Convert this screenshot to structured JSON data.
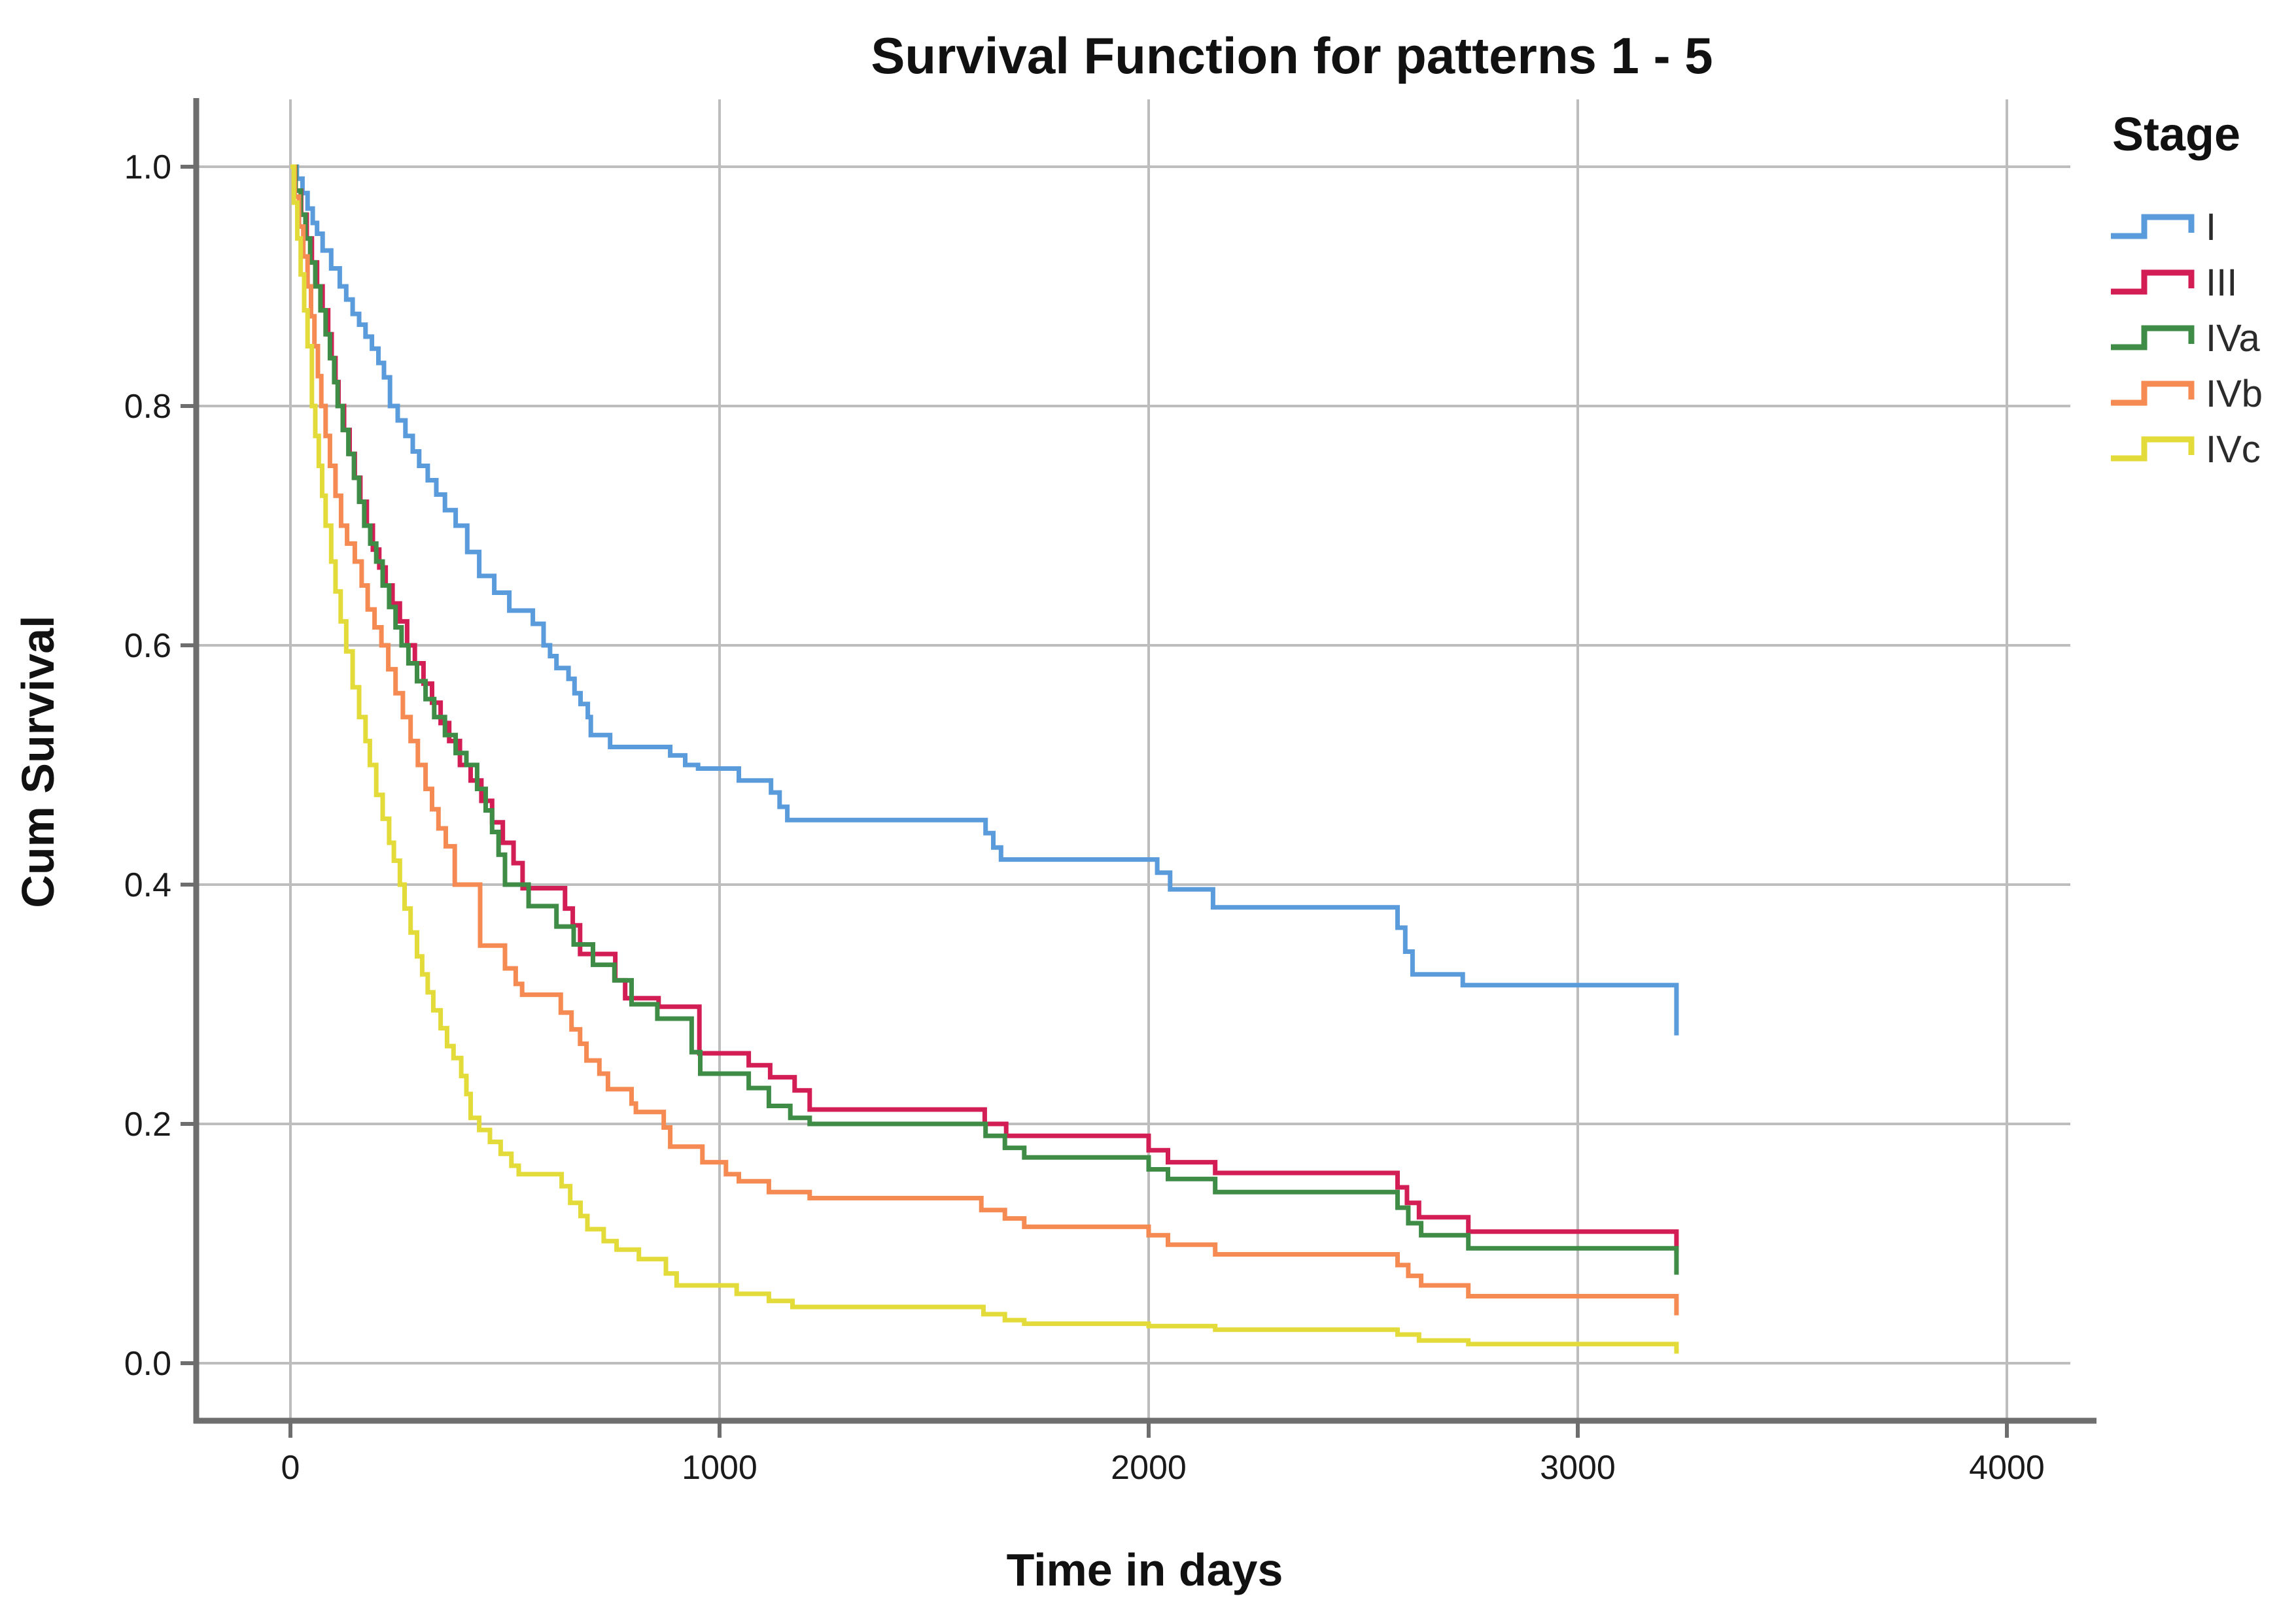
{
  "title": "Survival Function for patterns 1 - 5",
  "axes": {
    "x_label": "Time in days",
    "y_label": "Cum Survival",
    "x_ticks": [
      0,
      1000,
      2000,
      3000,
      4000
    ],
    "y_ticks": [
      "0.0",
      "0.2",
      "0.4",
      "0.6",
      "0.8",
      "1.0"
    ]
  },
  "legend": {
    "title": "Stage",
    "items": [
      {
        "label": "I",
        "color": "#5A9BDC"
      },
      {
        "label": "III",
        "color": "#D21E55"
      },
      {
        "label": "IVa",
        "color": "#3E8C46"
      },
      {
        "label": "IVb",
        "color": "#F58A52"
      },
      {
        "label": "IVc",
        "color": "#E3DB3A"
      }
    ]
  },
  "colors": {
    "gridline": "#BDBDBD",
    "axis": "#6E6E6E",
    "background": "#FFFFFF"
  },
  "chart_data": {
    "type": "line",
    "subtype": "kaplan-meier-step",
    "title": "Survival Function for patterns 1 - 5",
    "xlabel": "Time in days",
    "ylabel": "Cum Survival",
    "xlim": [
      -220,
      4200
    ],
    "ylim": [
      -0.05,
      1.06
    ],
    "grid": true,
    "legend_position": "right",
    "series": [
      {
        "name": "I",
        "color": "#5A9BDC",
        "points": [
          [
            0,
            1.0
          ],
          [
            15,
            0.99
          ],
          [
            28,
            0.978
          ],
          [
            40,
            0.965
          ],
          [
            52,
            0.953
          ],
          [
            62,
            0.944
          ],
          [
            75,
            0.93
          ],
          [
            95,
            0.915
          ],
          [
            115,
            0.9
          ],
          [
            130,
            0.889
          ],
          [
            145,
            0.877
          ],
          [
            160,
            0.868
          ],
          [
            175,
            0.858
          ],
          [
            190,
            0.848
          ],
          [
            205,
            0.836
          ],
          [
            218,
            0.824
          ],
          [
            232,
            0.8
          ],
          [
            250,
            0.788
          ],
          [
            268,
            0.775
          ],
          [
            285,
            0.762
          ],
          [
            300,
            0.75
          ],
          [
            320,
            0.738
          ],
          [
            340,
            0.726
          ],
          [
            360,
            0.713
          ],
          [
            385,
            0.7
          ],
          [
            412,
            0.678
          ],
          [
            440,
            0.658
          ],
          [
            475,
            0.644
          ],
          [
            510,
            0.629
          ],
          [
            565,
            0.618
          ],
          [
            590,
            0.6
          ],
          [
            605,
            0.591
          ],
          [
            620,
            0.581
          ],
          [
            648,
            0.572
          ],
          [
            662,
            0.56
          ],
          [
            676,
            0.551
          ],
          [
            693,
            0.54
          ],
          [
            700,
            0.525
          ],
          [
            745,
            0.515
          ],
          [
            885,
            0.508
          ],
          [
            920,
            0.5
          ],
          [
            950,
            0.497
          ],
          [
            1045,
            0.487
          ],
          [
            1120,
            0.477
          ],
          [
            1140,
            0.465
          ],
          [
            1158,
            0.454
          ],
          [
            1620,
            0.443
          ],
          [
            1638,
            0.431
          ],
          [
            1656,
            0.421
          ],
          [
            2020,
            0.41
          ],
          [
            2050,
            0.396
          ],
          [
            2150,
            0.381
          ],
          [
            2580,
            0.364
          ],
          [
            2598,
            0.344
          ],
          [
            2615,
            0.325
          ],
          [
            2732,
            0.316
          ],
          [
            3230,
            0.274
          ]
        ]
      },
      {
        "name": "III",
        "color": "#D21E55",
        "points": [
          [
            0,
            1.0
          ],
          [
            12,
            0.98
          ],
          [
            25,
            0.96
          ],
          [
            38,
            0.94
          ],
          [
            50,
            0.92
          ],
          [
            62,
            0.9
          ],
          [
            75,
            0.88
          ],
          [
            88,
            0.86
          ],
          [
            96,
            0.84
          ],
          [
            105,
            0.82
          ],
          [
            112,
            0.8
          ],
          [
            125,
            0.78
          ],
          [
            138,
            0.76
          ],
          [
            150,
            0.74
          ],
          [
            163,
            0.72
          ],
          [
            178,
            0.7
          ],
          [
            192,
            0.68
          ],
          [
            207,
            0.665
          ],
          [
            222,
            0.65
          ],
          [
            238,
            0.635
          ],
          [
            255,
            0.62
          ],
          [
            272,
            0.6
          ],
          [
            290,
            0.585
          ],
          [
            310,
            0.568
          ],
          [
            330,
            0.552
          ],
          [
            350,
            0.535
          ],
          [
            370,
            0.52
          ],
          [
            395,
            0.5
          ],
          [
            420,
            0.487
          ],
          [
            445,
            0.47
          ],
          [
            470,
            0.452
          ],
          [
            495,
            0.435
          ],
          [
            520,
            0.418
          ],
          [
            541,
            0.397
          ],
          [
            640,
            0.38
          ],
          [
            658,
            0.366
          ],
          [
            675,
            0.342
          ],
          [
            757,
            0.32
          ],
          [
            780,
            0.305
          ],
          [
            858,
            0.298
          ],
          [
            953,
            0.259
          ],
          [
            1068,
            0.249
          ],
          [
            1118,
            0.239
          ],
          [
            1175,
            0.228
          ],
          [
            1210,
            0.212
          ],
          [
            1618,
            0.2
          ],
          [
            1668,
            0.19
          ],
          [
            2000,
            0.178
          ],
          [
            2045,
            0.168
          ],
          [
            2155,
            0.159
          ],
          [
            2580,
            0.147
          ],
          [
            2602,
            0.134
          ],
          [
            2630,
            0.122
          ],
          [
            2745,
            0.11
          ],
          [
            3230,
            0.092
          ]
        ]
      },
      {
        "name": "IVa",
        "color": "#3E8C46",
        "points": [
          [
            0,
            1.0
          ],
          [
            12,
            0.98
          ],
          [
            24,
            0.96
          ],
          [
            35,
            0.94
          ],
          [
            46,
            0.92
          ],
          [
            58,
            0.9
          ],
          [
            70,
            0.88
          ],
          [
            82,
            0.86
          ],
          [
            92,
            0.84
          ],
          [
            102,
            0.82
          ],
          [
            110,
            0.8
          ],
          [
            122,
            0.78
          ],
          [
            135,
            0.76
          ],
          [
            148,
            0.74
          ],
          [
            160,
            0.72
          ],
          [
            172,
            0.7
          ],
          [
            186,
            0.685
          ],
          [
            200,
            0.67
          ],
          [
            215,
            0.65
          ],
          [
            230,
            0.632
          ],
          [
            245,
            0.615
          ],
          [
            259,
            0.6
          ],
          [
            275,
            0.585
          ],
          [
            295,
            0.57
          ],
          [
            315,
            0.555
          ],
          [
            335,
            0.54
          ],
          [
            360,
            0.525
          ],
          [
            385,
            0.51
          ],
          [
            410,
            0.5
          ],
          [
            435,
            0.48
          ],
          [
            455,
            0.462
          ],
          [
            470,
            0.444
          ],
          [
            485,
            0.425
          ],
          [
            500,
            0.4
          ],
          [
            555,
            0.382
          ],
          [
            620,
            0.365
          ],
          [
            660,
            0.35
          ],
          [
            705,
            0.333
          ],
          [
            755,
            0.32
          ],
          [
            795,
            0.3
          ],
          [
            855,
            0.288
          ],
          [
            935,
            0.26
          ],
          [
            955,
            0.242
          ],
          [
            1068,
            0.23
          ],
          [
            1115,
            0.215
          ],
          [
            1165,
            0.205
          ],
          [
            1210,
            0.2
          ],
          [
            1620,
            0.19
          ],
          [
            1665,
            0.18
          ],
          [
            1710,
            0.172
          ],
          [
            2000,
            0.162
          ],
          [
            2045,
            0.154
          ],
          [
            2155,
            0.143
          ],
          [
            2580,
            0.13
          ],
          [
            2605,
            0.117
          ],
          [
            2635,
            0.107
          ],
          [
            2745,
            0.096
          ],
          [
            3230,
            0.074
          ]
        ]
      },
      {
        "name": "IVb",
        "color": "#F58A52",
        "points": [
          [
            0,
            1.0
          ],
          [
            10,
            0.975
          ],
          [
            20,
            0.95
          ],
          [
            30,
            0.925
          ],
          [
            40,
            0.9
          ],
          [
            48,
            0.875
          ],
          [
            56,
            0.85
          ],
          [
            64,
            0.825
          ],
          [
            72,
            0.8
          ],
          [
            82,
            0.775
          ],
          [
            92,
            0.75
          ],
          [
            105,
            0.725
          ],
          [
            118,
            0.7
          ],
          [
            132,
            0.685
          ],
          [
            150,
            0.67
          ],
          [
            166,
            0.65
          ],
          [
            180,
            0.63
          ],
          [
            196,
            0.615
          ],
          [
            212,
            0.6
          ],
          [
            228,
            0.58
          ],
          [
            245,
            0.56
          ],
          [
            262,
            0.54
          ],
          [
            280,
            0.52
          ],
          [
            297,
            0.5
          ],
          [
            315,
            0.48
          ],
          [
            330,
            0.463
          ],
          [
            345,
            0.447
          ],
          [
            362,
            0.432
          ],
          [
            383,
            0.4
          ],
          [
            442,
            0.349
          ],
          [
            500,
            0.33
          ],
          [
            525,
            0.317
          ],
          [
            540,
            0.308
          ],
          [
            630,
            0.293
          ],
          [
            655,
            0.279
          ],
          [
            675,
            0.267
          ],
          [
            690,
            0.253
          ],
          [
            720,
            0.242
          ],
          [
            740,
            0.229
          ],
          [
            795,
            0.217
          ],
          [
            805,
            0.21
          ],
          [
            870,
            0.197
          ],
          [
            885,
            0.181
          ],
          [
            960,
            0.168
          ],
          [
            1015,
            0.158
          ],
          [
            1045,
            0.152
          ],
          [
            1115,
            0.143
          ],
          [
            1210,
            0.138
          ],
          [
            1610,
            0.128
          ],
          [
            1665,
            0.121
          ],
          [
            1710,
            0.114
          ],
          [
            2000,
            0.107
          ],
          [
            2045,
            0.099
          ],
          [
            2155,
            0.091
          ],
          [
            2580,
            0.082
          ],
          [
            2605,
            0.073
          ],
          [
            2635,
            0.065
          ],
          [
            2745,
            0.056
          ],
          [
            3230,
            0.04
          ]
        ]
      },
      {
        "name": "IVc",
        "color": "#E3DB3A",
        "points": [
          [
            0,
            1.0
          ],
          [
            8,
            0.97
          ],
          [
            16,
            0.94
          ],
          [
            24,
            0.91
          ],
          [
            32,
            0.88
          ],
          [
            40,
            0.85
          ],
          [
            50,
            0.8
          ],
          [
            58,
            0.775
          ],
          [
            66,
            0.75
          ],
          [
            74,
            0.725
          ],
          [
            82,
            0.7
          ],
          [
            95,
            0.67
          ],
          [
            105,
            0.645
          ],
          [
            117,
            0.62
          ],
          [
            130,
            0.595
          ],
          [
            145,
            0.565
          ],
          [
            160,
            0.54
          ],
          [
            175,
            0.52
          ],
          [
            185,
            0.5
          ],
          [
            200,
            0.475
          ],
          [
            215,
            0.455
          ],
          [
            230,
            0.435
          ],
          [
            241,
            0.42
          ],
          [
            255,
            0.4
          ],
          [
            266,
            0.38
          ],
          [
            280,
            0.36
          ],
          [
            295,
            0.34
          ],
          [
            307,
            0.325
          ],
          [
            320,
            0.31
          ],
          [
            333,
            0.295
          ],
          [
            350,
            0.28
          ],
          [
            365,
            0.265
          ],
          [
            380,
            0.255
          ],
          [
            398,
            0.24
          ],
          [
            410,
            0.225
          ],
          [
            420,
            0.205
          ],
          [
            440,
            0.195
          ],
          [
            465,
            0.185
          ],
          [
            490,
            0.175
          ],
          [
            515,
            0.165
          ],
          [
            532,
            0.158
          ],
          [
            632,
            0.148
          ],
          [
            652,
            0.134
          ],
          [
            676,
            0.123
          ],
          [
            692,
            0.112
          ],
          [
            730,
            0.102
          ],
          [
            760,
            0.095
          ],
          [
            812,
            0.087
          ],
          [
            875,
            0.075
          ],
          [
            900,
            0.065
          ],
          [
            1040,
            0.058
          ],
          [
            1115,
            0.052
          ],
          [
            1170,
            0.047
          ],
          [
            1615,
            0.041
          ],
          [
            1665,
            0.036
          ],
          [
            1710,
            0.033
          ],
          [
            2000,
            0.031
          ],
          [
            2155,
            0.028
          ],
          [
            2580,
            0.024
          ],
          [
            2630,
            0.019
          ],
          [
            2745,
            0.016
          ],
          [
            3230,
            0.008
          ]
        ]
      }
    ]
  }
}
